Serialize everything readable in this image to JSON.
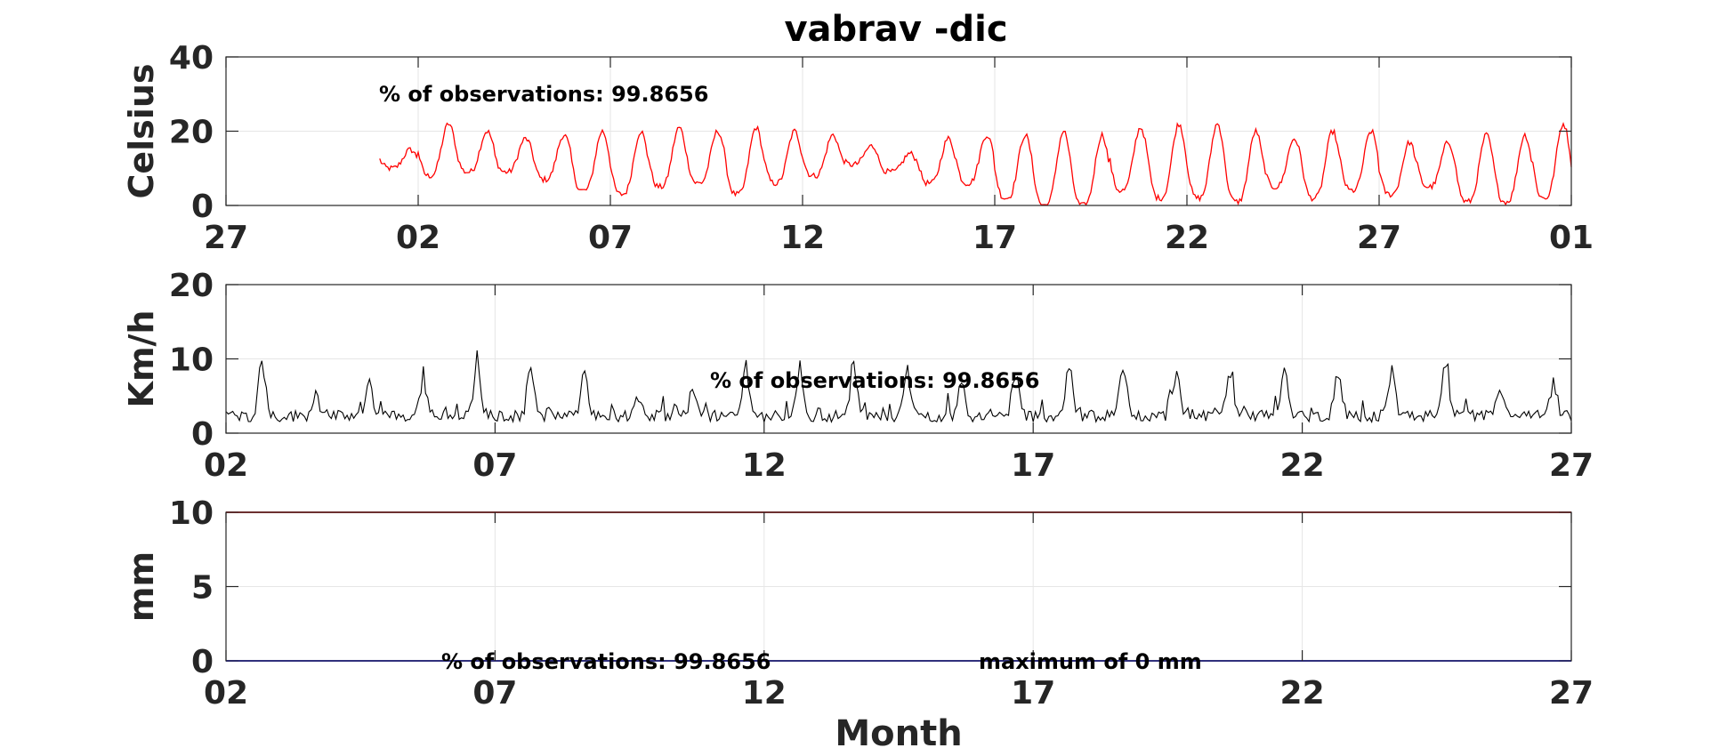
{
  "title": "vabrav -dic",
  "colors": {
    "temperature": "#ff0000",
    "wind": "#000000",
    "precip_max": "#cc0000",
    "precip": "#0000ff",
    "grid": "#e6e6e6",
    "axes": "#262626"
  },
  "chart_data": [
    {
      "type": "line",
      "name": "temperature",
      "ylabel": "Celsius",
      "xlabel": "",
      "ylim": [
        0,
        40
      ],
      "yticks": [
        0,
        20,
        40
      ],
      "xlim": [
        -4,
        31
      ],
      "xticks": [
        -4,
        1,
        6,
        11,
        16,
        21,
        26,
        31
      ],
      "xtick_labels": [
        "27",
        "02",
        "07",
        "12",
        "17",
        "22",
        "27",
        "01"
      ],
      "grid": true,
      "annotation": "% of observations: 99.8656",
      "data_start_day": 0,
      "data_end_day": 31,
      "daily_min": [
        10,
        8,
        9,
        9,
        7,
        4,
        3,
        5,
        6,
        3,
        6,
        8,
        11,
        9,
        6,
        6,
        2,
        0,
        0,
        4,
        2,
        2,
        1,
        5,
        2,
        4,
        3,
        5,
        1,
        1,
        2,
        2
      ],
      "daily_max": [
        15,
        22,
        20,
        18,
        19,
        20,
        20,
        21,
        20,
        21,
        20,
        19,
        16,
        14,
        18,
        19,
        19,
        20,
        19,
        21,
        22,
        22,
        20,
        18,
        20,
        20,
        17,
        17,
        19,
        19,
        22,
        21
      ]
    },
    {
      "type": "line",
      "name": "wind",
      "ylabel": "Km/h",
      "xlabel": "",
      "ylim": [
        0,
        20
      ],
      "yticks": [
        0,
        10,
        20
      ],
      "xlim": [
        2,
        27
      ],
      "xticks": [
        2,
        7,
        12,
        17,
        22,
        27
      ],
      "xtick_labels": [
        "02",
        "07",
        "12",
        "17",
        "22",
        "27"
      ],
      "grid": true,
      "annotation": "% of observations: 99.8656",
      "data_start_day": 2,
      "data_end_day": 27,
      "daily_peak": [
        10.2,
        4.8,
        6.8,
        6.9,
        8.7,
        8.9,
        8.4,
        4.4,
        5.3,
        9.1,
        8.9,
        9.4,
        7.9,
        6.6,
        8.2,
        9.1,
        9.0,
        7.7,
        8.5,
        8.4,
        8.3,
        8.5,
        8.6,
        6.0,
        6.2,
        9.0
      ],
      "base_level": 1.5
    },
    {
      "type": "line",
      "name": "precipitation",
      "ylabel": "mm",
      "xlabel": "Month",
      "ylim": [
        0,
        10
      ],
      "yticks": [
        0,
        5,
        10
      ],
      "xlim": [
        2,
        27
      ],
      "xticks": [
        2,
        7,
        12,
        17,
        22,
        27
      ],
      "xtick_labels": [
        "02",
        "07",
        "12",
        "17",
        "22",
        "27"
      ],
      "grid": true,
      "annotation": "% of observations: 99.8656",
      "annotation_max": "maximum of 0 mm",
      "series": [
        {
          "x": [
            2,
            27
          ],
          "y": [
            10,
            10
          ],
          "color": "#cc0000"
        },
        {
          "x": [
            2,
            27
          ],
          "y": [
            0,
            0
          ],
          "color": "#0000ff"
        }
      ]
    }
  ]
}
